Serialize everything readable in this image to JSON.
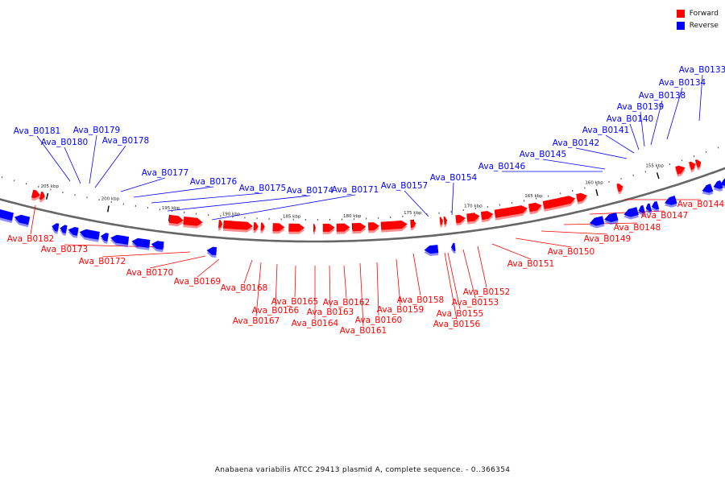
{
  "legend": {
    "forward_label": "Forward",
    "reverse_label": "Reverse",
    "forward_color": "#ff0000",
    "reverse_color": "#0000ff"
  },
  "caption": "Anabaena variabilis ATCC 29413 plasmid A, complete sequence. - 0..366354",
  "map": {
    "sequence_length_bp": 366354,
    "visible_range_kbp": [
      152,
      210
    ],
    "ticks_kbp": [
      155,
      160,
      165,
      170,
      175,
      180,
      185,
      190,
      195,
      200,
      205
    ],
    "tick_labels": [
      "155 kbp",
      "160 kbp",
      "165 kbp",
      "170 kbp",
      "175 kbp",
      "180 kbp",
      "185 kbp",
      "190 kbp",
      "195 kbp",
      "200 kbp",
      "205 kbp"
    ],
    "forward_genes": [
      "Ava_B0144",
      "Ava_B0147",
      "Ava_B0148",
      "Ava_B0149",
      "Ava_B0150",
      "Ava_B0151",
      "Ava_B0152",
      "Ava_B0153",
      "Ava_B0155",
      "Ava_B0156",
      "Ava_B0158",
      "Ava_B0159",
      "Ava_B0160",
      "Ava_B0161",
      "Ava_B0162",
      "Ava_B0163",
      "Ava_B0164",
      "Ava_B0165",
      "Ava_B0166",
      "Ava_B0167",
      "Ava_B0168",
      "Ava_B0169",
      "Ava_B0170",
      "Ava_B0172",
      "Ava_B0173",
      "Ava_B0182"
    ],
    "reverse_genes": [
      "Ava_B0133",
      "Ava_B0134",
      "Ava_B0138",
      "Ava_B0139",
      "Ava_B0140",
      "Ava_B0141",
      "Ava_B0142",
      "Ava_B0145",
      "Ava_B0146",
      "Ava_B0154",
      "Ava_B0157",
      "Ava_B0171",
      "Ava_B0174",
      "Ava_B0175",
      "Ava_B0176",
      "Ava_B0177",
      "Ava_B0178",
      "Ava_B0179",
      "Ava_B0180",
      "Ava_B0181"
    ]
  }
}
